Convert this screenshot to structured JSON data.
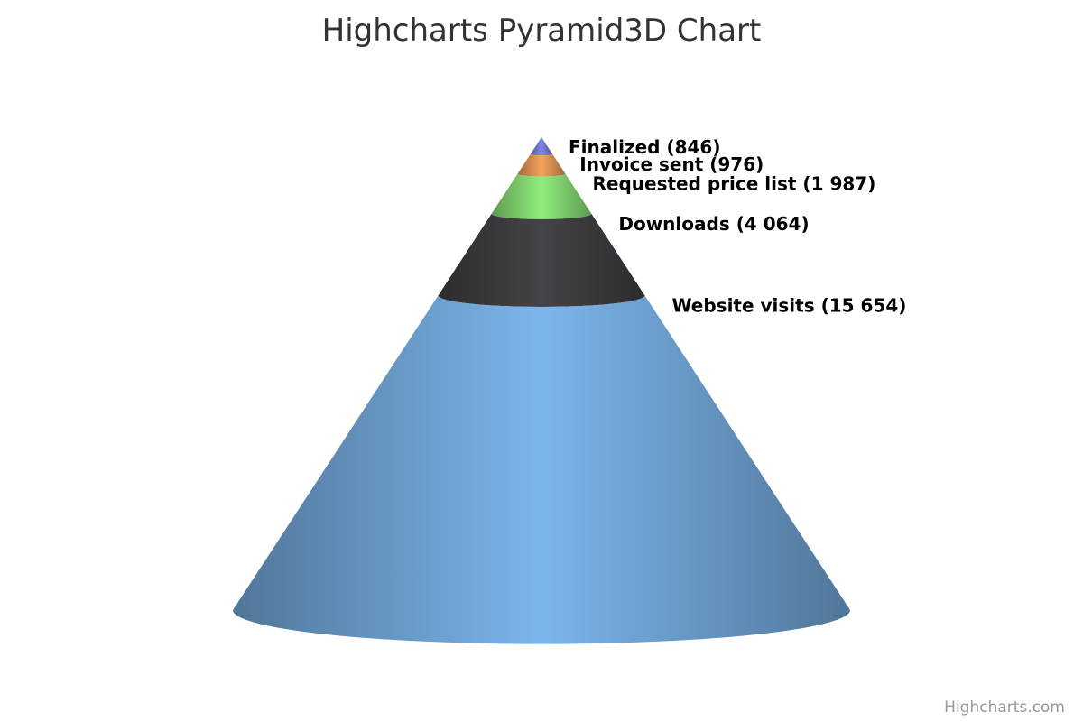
{
  "chart_data": {
    "type": "pyramid3d",
    "title": "Highcharts Pyramid3D Chart",
    "series": [
      {
        "name": "",
        "data": [
          {
            "name": "Website visits",
            "value": 15654,
            "label": "Website visits (15 654)",
            "color": "#7cb5ec"
          },
          {
            "name": "Downloads",
            "value": 4064,
            "label": "Downloads (4 064)",
            "color": "#434348"
          },
          {
            "name": "Requested price list",
            "value": 1987,
            "label": "Requested price list (1 987)",
            "color": "#90ed7d"
          },
          {
            "name": "Invoice sent",
            "value": 976,
            "label": "Invoice sent (976)",
            "color": "#f7a35c"
          },
          {
            "name": "Finalized",
            "value": 846,
            "label": "Finalized (846)",
            "color": "#8085e9"
          }
        ]
      }
    ],
    "legend": "none"
  },
  "credits": "Highcharts.com"
}
